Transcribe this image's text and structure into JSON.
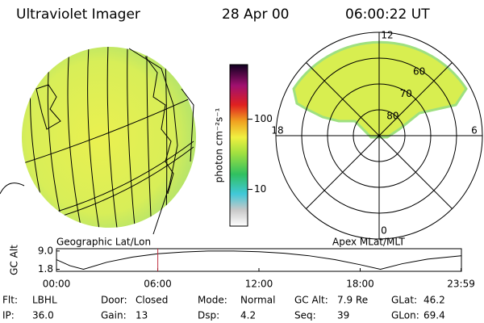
{
  "header": {
    "instrument": "Ultraviolet Imager",
    "date": "28 Apr 00",
    "time": "06:00:22 UT"
  },
  "left_panel": {
    "label": "Geographic Lat/Lon"
  },
  "colorbar": {
    "label": "photon cm⁻²s⁻¹",
    "lim": [
      3,
      600
    ],
    "ticks": [
      10,
      100
    ],
    "log": true
  },
  "polar": {
    "label": "Apex MLat/MLT",
    "hour_labels": [
      "12",
      "18",
      "6",
      "0"
    ],
    "lat_min": 50,
    "ring_labels": [
      60,
      70,
      80
    ]
  },
  "altitude_plot": {
    "ylabel": "GC Alt",
    "ylim": [
      1.0,
      9.9
    ],
    "yticks": [
      {
        "value": 9.0,
        "label": "9.0"
      },
      {
        "value": 1.8,
        "label": "1.8"
      }
    ],
    "xlim": [
      0,
      24
    ],
    "xticks": [
      {
        "value": 0,
        "label": "00:00"
      },
      {
        "value": 6,
        "label": "06:00"
      },
      {
        "value": 12,
        "label": "12:00"
      },
      {
        "value": 18,
        "label": "18:00"
      },
      {
        "value": 23.98,
        "label": "23:59"
      }
    ],
    "x": [
      0,
      0.8,
      1.6,
      3,
      4.5,
      6,
      7.5,
      9,
      10.5,
      12,
      13.5,
      15,
      16.5,
      18,
      19.2,
      20.5,
      22,
      23.98
    ],
    "values": [
      5.6,
      3.2,
      1.8,
      4.6,
      6.6,
      7.9,
      8.6,
      9.0,
      9.0,
      8.7,
      8.1,
      7.1,
      5.6,
      3.6,
      1.8,
      4.0,
      5.8,
      7.1
    ],
    "marker": 6.006,
    "marker_color": "#c03040",
    "line_color": "#000000"
  },
  "fields": [
    [
      {
        "label": "Flt:",
        "value": "LBHL"
      },
      {
        "label": "Door:",
        "value": "Closed"
      },
      {
        "label": "Mode:",
        "value": "Normal"
      },
      {
        "label": "GC Alt:",
        "value": "7.9 Re"
      },
      {
        "label": "GLat:",
        "value": "46.2"
      }
    ],
    [
      {
        "label": "IP:",
        "value": "36.0"
      },
      {
        "label": "Gain:",
        "value": "13"
      },
      {
        "label": "Dsp:",
        "value": "4.2"
      },
      {
        "label": "Seq:",
        "value": "39"
      },
      {
        "label": "GLon:",
        "value": "69.4"
      }
    ]
  ]
}
